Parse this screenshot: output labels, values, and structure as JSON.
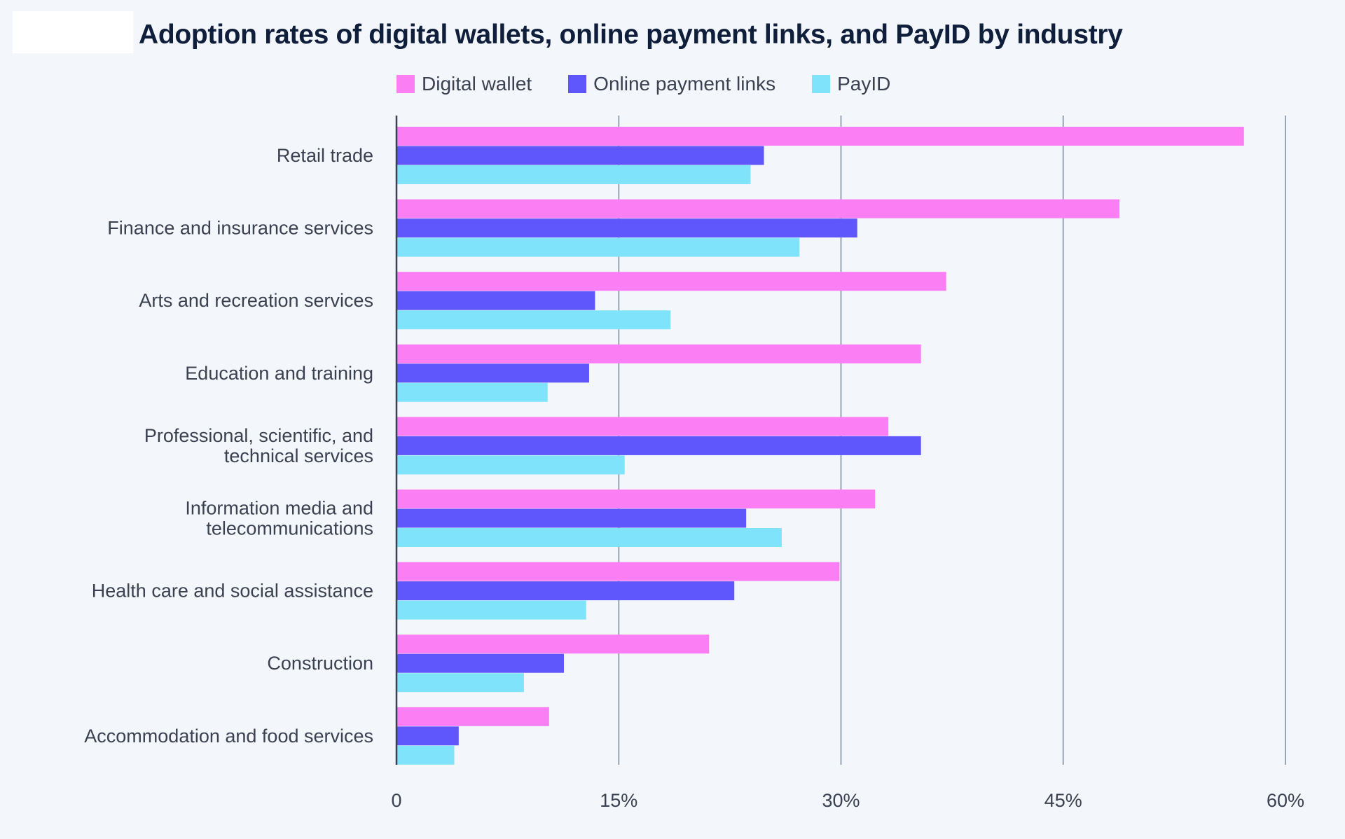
{
  "chart_data": {
    "type": "bar",
    "orientation": "horizontal",
    "title": "Adoption rates of digital wallets, online payment links, and PayID by industry",
    "categories": [
      [
        "Retail trade"
      ],
      [
        "Finance and insurance services"
      ],
      [
        "Arts and recreation services"
      ],
      [
        "Education and training"
      ],
      [
        "Professional, scientific, and",
        "technical services"
      ],
      [
        "Information media and",
        "telecommunications"
      ],
      [
        "Health care and social assistance"
      ],
      [
        "Construction"
      ],
      [
        "Accommodation and food services"
      ]
    ],
    "series": [
      {
        "name": "Digital wallet",
        "color": "#fb7ef4",
        "values": [
          57.2,
          48.8,
          37.1,
          35.4,
          33.2,
          32.3,
          29.9,
          21.1,
          10.3
        ]
      },
      {
        "name": "Online payment links",
        "color": "#5f56fb",
        "values": [
          24.8,
          31.1,
          13.4,
          13.0,
          35.4,
          23.6,
          22.8,
          11.3,
          4.2
        ]
      },
      {
        "name": "PayID",
        "color": "#7fe4fb",
        "values": [
          23.9,
          27.2,
          18.5,
          10.2,
          15.4,
          26.0,
          12.8,
          8.6,
          3.9
        ]
      }
    ],
    "xlim": [
      0,
      60
    ],
    "xticks": [
      0,
      15,
      30,
      45,
      60
    ],
    "xtick_labels": [
      "0",
      "15%",
      "30%",
      "45%",
      "60%"
    ],
    "grid": true,
    "legend_position": "top"
  },
  "colors": {
    "background": "#f3f6fa",
    "grid": "#9aa6b6",
    "axis": "#3a4150",
    "title": "#0f1e3a"
  }
}
